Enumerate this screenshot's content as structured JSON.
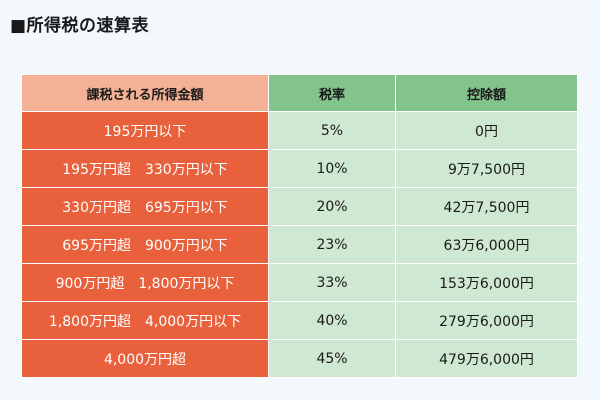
{
  "title": "■所得税の速算表",
  "table": {
    "headers": [
      "課税される所得金額",
      "税率",
      "控除額"
    ],
    "rows": [
      [
        "195万円以下",
        "5%",
        "0円"
      ],
      [
        "195万円超　330万円以下",
        "10%",
        "9万7,500円"
      ],
      [
        "330万円超　695万円以下",
        "20%",
        "42万7,500円"
      ],
      [
        "695万円超　900万円以下",
        "23%",
        "63万6,000円"
      ],
      [
        "900万円超　1,800万円以下",
        "33%",
        "153万6,000円"
      ],
      [
        "1,800万円超　4,000万円以下",
        "40%",
        "279万6,000円"
      ],
      [
        "4,000万円超",
        "45%",
        "479万6,000円"
      ]
    ]
  },
  "colors": {
    "income_cell": "#e9613c",
    "income_header": "#f5b196",
    "rate_header": "#82c48b",
    "rate_cell": "#cfe8d2",
    "background": "#f3f8fd"
  }
}
